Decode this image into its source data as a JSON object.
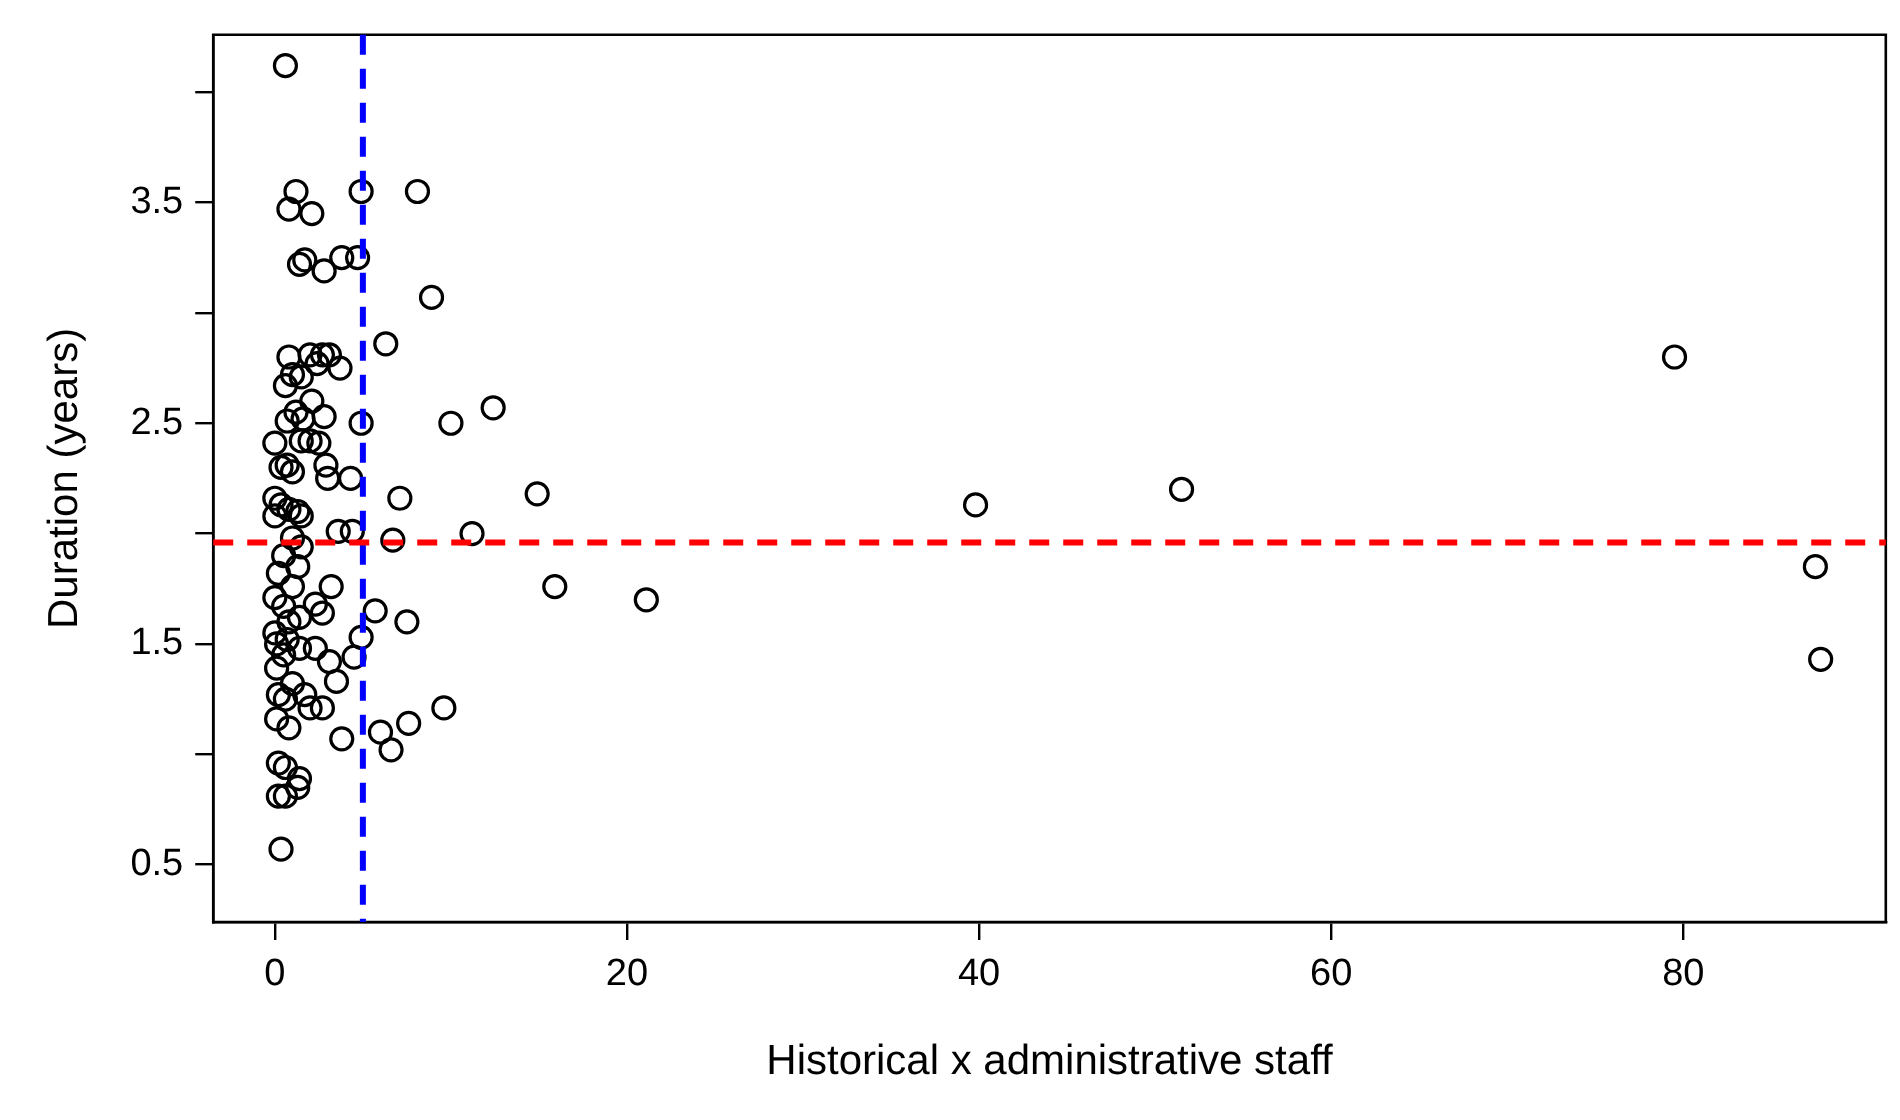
{
  "chart_data": {
    "type": "scatter",
    "xlabel": "Historical x administrative staff",
    "ylabel": "Duration (years)",
    "marker": "circle",
    "grid": false,
    "legend": false,
    "xlim": [
      -3.5,
      91.5
    ],
    "xticks": [
      0,
      20,
      40,
      60,
      80
    ],
    "ylim": [
      0.24,
      4.26
    ],
    "yticks": [
      0.5,
      {
        "value": 1,
        "label": null
      },
      1.5,
      {
        "value": 2,
        "label": null
      },
      2.5,
      {
        "value": 3,
        "label": null
      },
      3.5,
      {
        "value": 4,
        "label": null
      }
    ],
    "ref_lines": [
      {
        "axis": "x",
        "value": 5,
        "label": null,
        "color": "#0000ff",
        "line_style": "dashed"
      },
      {
        "axis": "y",
        "value": 1.96,
        "label": null,
        "color": "#ff0000",
        "line_style": "dashed"
      }
    ],
    "series": [
      {
        "color": "#000000",
        "x": [
          0.6,
          1.2,
          0.8,
          2.1,
          4.9,
          8.1,
          1.4,
          1.7,
          2.8,
          3.8,
          4.7,
          8.9,
          6.3,
          0.8,
          2.0,
          2.7,
          3.1,
          2.4,
          1.5,
          0.6,
          1.0,
          3.7,
          79.5,
          2.1,
          1.2,
          2.8,
          0.7,
          1.6,
          4.9,
          10,
          12.4,
          0,
          2.0,
          1.5,
          2.5,
          0.7,
          0.35,
          2.9,
          3.0,
          1.0,
          4.3,
          14.9,
          7.1,
          39.8,
          51.5,
          0,
          0.35,
          0.8,
          0,
          1.3,
          1.5,
          11.2,
          6.7,
          3.6,
          4.4,
          1,
          1.5,
          0.5,
          1.3,
          0.2,
          1.0,
          15.9,
          3.2,
          21.1,
          0,
          0.5,
          2.3,
          2.7,
          5.7,
          7.5,
          0.8,
          1.4,
          0,
          0.7,
          4.9,
          1.4,
          0.1,
          2.3,
          4.5,
          3.1,
          0.5,
          87.5,
          87.8,
          0.1,
          1.0,
          3.5,
          0.2,
          1.7,
          2.7,
          9.6,
          2.0,
          0.6,
          0.1,
          0.8,
          7.6,
          6.0,
          3.8,
          6.6,
          0.2,
          0.6,
          1.4,
          1.3,
          0.2,
          0.6,
          0.35
        ],
        "values": [
          4.12,
          3.55,
          3.47,
          3.45,
          3.55,
          3.55,
          3.22,
          3.24,
          3.19,
          3.25,
          3.25,
          3.07,
          2.86,
          2.8,
          2.81,
          2.81,
          2.81,
          2.77,
          2.71,
          2.67,
          2.72,
          2.75,
          2.8,
          2.6,
          2.55,
          2.53,
          2.51,
          2.52,
          2.5,
          2.5,
          2.57,
          2.41,
          2.42,
          2.42,
          2.41,
          2.31,
          2.3,
          2.31,
          2.25,
          2.28,
          2.25,
          2.18,
          2.16,
          2.13,
          2.2,
          2.16,
          2.13,
          2.11,
          2.08,
          2.1,
          2.08,
          2.0,
          1.97,
          2.01,
          2.01,
          1.98,
          1.94,
          1.9,
          1.85,
          1.82,
          1.76,
          1.76,
          1.76,
          1.7,
          1.71,
          1.67,
          1.68,
          1.64,
          1.65,
          1.6,
          1.6,
          1.62,
          1.55,
          1.52,
          1.53,
          1.48,
          1.5,
          1.48,
          1.44,
          1.42,
          1.45,
          1.85,
          1.43,
          1.39,
          1.32,
          1.33,
          1.27,
          1.27,
          1.21,
          1.21,
          1.21,
          1.25,
          1.16,
          1.12,
          1.14,
          1.1,
          1.07,
          1.02,
          0.96,
          0.94,
          0.89,
          0.85,
          0.81,
          0.81,
          0.57
        ]
      }
    ]
  }
}
